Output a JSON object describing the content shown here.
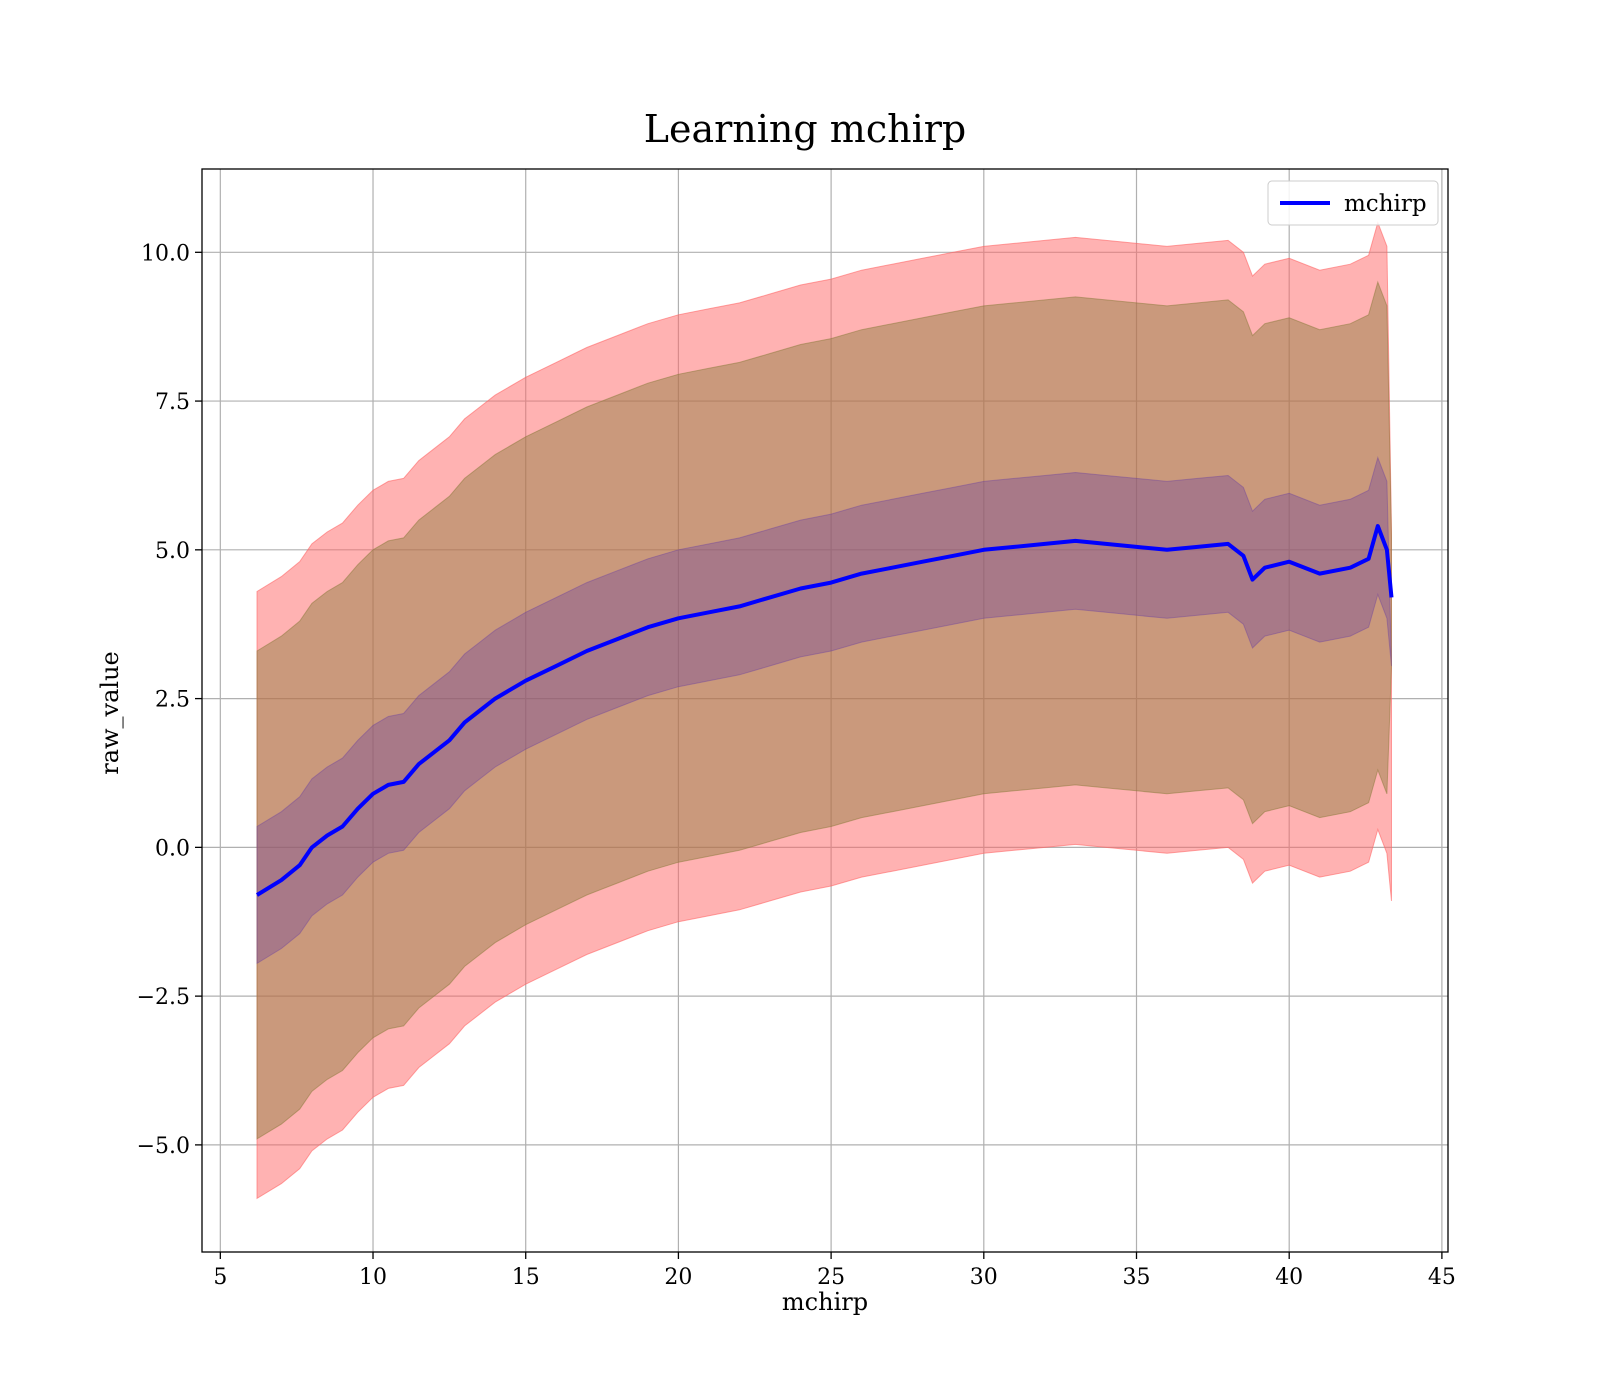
{
  "chart_data": {
    "type": "area",
    "title": "Learning mchirp",
    "xlabel": "mchirp",
    "ylabel": "raw_value",
    "xlim": [
      4.4,
      45.2
    ],
    "ylim": [
      -6.8,
      11.4
    ],
    "x_ticks": [
      5,
      10,
      15,
      20,
      25,
      30,
      35,
      40,
      45
    ],
    "y_ticks": [
      -5.0,
      -2.5,
      0.0,
      2.5,
      5.0,
      7.5,
      10.0
    ],
    "x_tick_labels": [
      "5",
      "10",
      "15",
      "20",
      "25",
      "30",
      "35",
      "40",
      "45"
    ],
    "y_tick_labels": [
      "−5.0",
      "−2.5",
      "0.0",
      "2.5",
      "5.0",
      "7.5",
      "10.0"
    ],
    "grid": true,
    "legend": {
      "position": "top-right",
      "entries": [
        "mchirp"
      ]
    },
    "colors": {
      "mean_line": "#0000ff",
      "outer_band": "#ff6666",
      "middle_band": "#8a7a3a",
      "inner_band": "#6a3fa0",
      "grid": "#b0b0b0"
    },
    "series": [
      {
        "name": "mchirp",
        "x": [
          6.2,
          7.0,
          7.6,
          8.0,
          8.5,
          9.0,
          9.5,
          10.0,
          10.5,
          11.0,
          11.5,
          12.0,
          12.5,
          13.0,
          13.5,
          14.0,
          15.0,
          16.0,
          17.0,
          18.0,
          19.0,
          20.0,
          21.0,
          22.0,
          23.0,
          24.0,
          25.0,
          26.0,
          27.0,
          28.0,
          29.0,
          30.0,
          31.0,
          32.0,
          33.0,
          34.0,
          35.0,
          36.0,
          37.0,
          38.0,
          38.5,
          38.8,
          39.2,
          40.0,
          41.0,
          42.0,
          42.6,
          42.9,
          43.2,
          43.35
        ],
        "mean": [
          -0.8,
          -0.55,
          -0.3,
          0.0,
          0.2,
          0.35,
          0.65,
          0.9,
          1.05,
          1.1,
          1.4,
          1.6,
          1.8,
          2.1,
          2.3,
          2.5,
          2.8,
          3.05,
          3.3,
          3.5,
          3.7,
          3.85,
          3.95,
          4.05,
          4.2,
          4.35,
          4.45,
          4.6,
          4.7,
          4.8,
          4.9,
          5.0,
          5.05,
          5.1,
          5.15,
          5.1,
          5.05,
          5.0,
          5.05,
          5.1,
          4.9,
          4.5,
          4.7,
          4.8,
          4.6,
          4.7,
          4.85,
          5.4,
          5.0,
          4.2
        ],
        "band_1sigma_upper": [
          0.35,
          0.6,
          0.85,
          1.15,
          1.35,
          1.5,
          1.8,
          2.05,
          2.2,
          2.25,
          2.55,
          2.75,
          2.95,
          3.25,
          3.45,
          3.65,
          3.95,
          4.2,
          4.45,
          4.65,
          4.85,
          5.0,
          5.1,
          5.2,
          5.35,
          5.5,
          5.6,
          5.75,
          5.85,
          5.95,
          6.05,
          6.15,
          6.2,
          6.25,
          6.3,
          6.25,
          6.2,
          6.15,
          6.2,
          6.25,
          6.05,
          5.65,
          5.85,
          5.95,
          5.75,
          5.85,
          6.0,
          6.55,
          6.15,
          3.05
        ],
        "band_1sigma_lower": [
          -1.95,
          -1.7,
          -1.45,
          -1.15,
          -0.95,
          -0.8,
          -0.5,
          -0.25,
          -0.1,
          -0.05,
          0.25,
          0.45,
          0.65,
          0.95,
          1.15,
          1.35,
          1.65,
          1.9,
          2.15,
          2.35,
          2.55,
          2.7,
          2.8,
          2.9,
          3.05,
          3.2,
          3.3,
          3.45,
          3.55,
          3.65,
          3.75,
          3.85,
          3.9,
          3.95,
          4.0,
          3.95,
          3.9,
          3.85,
          3.9,
          3.95,
          3.75,
          3.35,
          3.55,
          3.65,
          3.45,
          3.55,
          3.7,
          4.25,
          3.85,
          3.05
        ],
        "band_2sigma_upper": [
          3.3,
          3.55,
          3.8,
          4.1,
          4.3,
          4.45,
          4.75,
          5.0,
          5.15,
          5.2,
          5.5,
          5.7,
          5.9,
          6.2,
          6.4,
          6.6,
          6.9,
          7.15,
          7.4,
          7.6,
          7.8,
          7.95,
          8.05,
          8.15,
          8.3,
          8.45,
          8.55,
          8.7,
          8.8,
          8.9,
          9.0,
          9.1,
          9.15,
          9.2,
          9.25,
          9.2,
          9.15,
          9.1,
          9.15,
          9.2,
          9.0,
          8.6,
          8.8,
          8.9,
          8.7,
          8.8,
          8.95,
          9.5,
          9.1,
          5.2
        ],
        "band_2sigma_lower": [
          -4.9,
          -4.65,
          -4.4,
          -4.1,
          -3.9,
          -3.75,
          -3.45,
          -3.2,
          -3.05,
          -3.0,
          -2.7,
          -2.5,
          -2.3,
          -2.0,
          -1.8,
          -1.6,
          -1.3,
          -1.05,
          -0.8,
          -0.6,
          -0.4,
          -0.25,
          -0.15,
          -0.05,
          0.1,
          0.25,
          0.35,
          0.5,
          0.6,
          0.7,
          0.8,
          0.9,
          0.95,
          1.0,
          1.05,
          1.0,
          0.95,
          0.9,
          0.95,
          1.0,
          0.8,
          0.4,
          0.6,
          0.7,
          0.5,
          0.6,
          0.75,
          1.3,
          0.9,
          3.05
        ],
        "band_3sigma_upper": [
          4.3,
          4.55,
          4.8,
          5.1,
          5.3,
          5.45,
          5.75,
          6.0,
          6.15,
          6.2,
          6.5,
          6.7,
          6.9,
          7.2,
          7.4,
          7.6,
          7.9,
          8.15,
          8.4,
          8.6,
          8.8,
          8.95,
          9.05,
          9.15,
          9.3,
          9.45,
          9.55,
          9.7,
          9.8,
          9.9,
          10.0,
          10.1,
          10.15,
          10.2,
          10.25,
          10.2,
          10.15,
          10.1,
          10.15,
          10.2,
          10.0,
          9.6,
          9.8,
          9.9,
          9.7,
          9.8,
          9.95,
          10.5,
          10.1,
          5.3
        ],
        "band_3sigma_lower": [
          -5.9,
          -5.65,
          -5.4,
          -5.1,
          -4.9,
          -4.75,
          -4.45,
          -4.2,
          -4.05,
          -4.0,
          -3.7,
          -3.5,
          -3.3,
          -3.0,
          -2.8,
          -2.6,
          -2.3,
          -2.05,
          -1.8,
          -1.6,
          -1.4,
          -1.25,
          -1.15,
          -1.05,
          -0.9,
          -0.75,
          -0.65,
          -0.5,
          -0.4,
          -0.3,
          -0.2,
          -0.1,
          -0.05,
          0.0,
          0.05,
          0.0,
          -0.05,
          -0.1,
          -0.05,
          0.0,
          -0.2,
          -0.6,
          -0.4,
          -0.3,
          -0.5,
          -0.4,
          -0.25,
          0.3,
          -0.1,
          -0.9
        ]
      }
    ]
  }
}
